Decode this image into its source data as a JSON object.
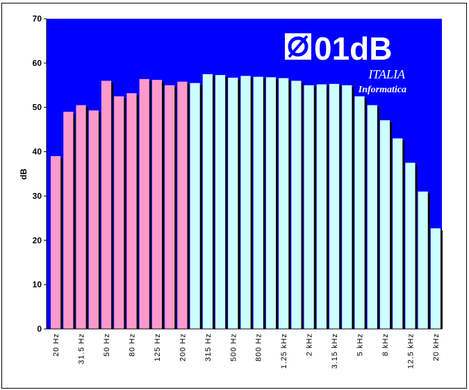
{
  "chart_data": {
    "type": "bar",
    "y_label": "dB",
    "logo": {
      "brand": "01dB",
      "line1": "ITALIA",
      "line2": "Informatica"
    },
    "categories": [
      "20 Hz",
      null,
      "31.5 Hz",
      null,
      "50 Hz",
      null,
      "80 Hz",
      null,
      "125 Hz",
      null,
      "200 Hz",
      null,
      "315 Hz",
      null,
      "500 Hz",
      null,
      "800 Hz",
      null,
      "1.25 kHz",
      null,
      "2 kHz",
      null,
      "3.15 kHz",
      null,
      "5 kHz",
      null,
      "8 kHz",
      null,
      "12.5 kHz",
      null,
      "20 kHz"
    ],
    "values": [
      39,
      49,
      50.5,
      49.3,
      56,
      52.5,
      53.2,
      56.4,
      56.2,
      55,
      55.8,
      55.5,
      57.5,
      57.3,
      56.7,
      57.1,
      56.9,
      56.8,
      56.6,
      56,
      55,
      55.2,
      55.3,
      55,
      52.5,
      50.5,
      47.1,
      43,
      37.5,
      31,
      22.7
    ],
    "bar_colors": [
      "#ff99cc",
      "#ff99cc",
      "#ff99cc",
      "#ff99cc",
      "#ff99cc",
      "#ff99cc",
      "#ff99cc",
      "#ff99cc",
      "#ff99cc",
      "#ff99cc",
      "#ff99cc",
      "#ccffff",
      "#ccffff",
      "#ccffff",
      "#ccffff",
      "#ccffff",
      "#ccffff",
      "#ccffff",
      "#ccffff",
      "#ccffff",
      "#ccffff",
      "#ccffff",
      "#ccffff",
      "#ccffff",
      "#ccffff",
      "#ccffff",
      "#ccffff",
      "#ccffff",
      "#ccffff",
      "#ccffff",
      "#ccffff"
    ],
    "background": "#0000ff",
    "ylim": [
      0,
      70
    ],
    "yticks": [
      0,
      10,
      20,
      30,
      40,
      50,
      60,
      70
    ]
  }
}
